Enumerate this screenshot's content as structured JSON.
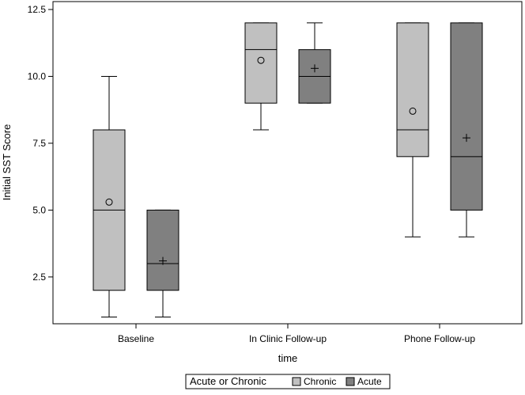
{
  "chart_data": {
    "type": "boxplot",
    "xlabel": "time",
    "ylabel": "Initial SST Score",
    "ylim": [
      0.75,
      12.5
    ],
    "yticks": [
      "2.5",
      "5.0",
      "7.5",
      "10.0",
      "12.5"
    ],
    "ytick_values": [
      2.5,
      5.0,
      7.5,
      10.0,
      12.5
    ],
    "categories": [
      "Baseline",
      "In Clinic Follow-up",
      "Phone Follow-up"
    ],
    "grid": false,
    "legend_position": "bottom-center",
    "legend_title": "Acute or Chronic",
    "series": [
      {
        "name": "Chronic",
        "color": "#c0c0c0",
        "mean_marker": "circle",
        "boxes": [
          {
            "min": 1,
            "q1": 2,
            "median": 5,
            "q3": 8,
            "max": 10,
            "mean": 5.3
          },
          {
            "min": 8,
            "q1": 9,
            "median": 11,
            "q3": 12,
            "max": 12,
            "mean": 10.6
          },
          {
            "min": 4,
            "q1": 7,
            "median": 8,
            "q3": 12,
            "max": 12,
            "mean": 8.7
          }
        ]
      },
      {
        "name": "Acute",
        "color": "#808080",
        "mean_marker": "plus",
        "boxes": [
          {
            "min": 1,
            "q1": 2,
            "median": 3,
            "q3": 5,
            "max": 5,
            "mean": 3.1
          },
          {
            "min": 9,
            "q1": 9,
            "median": 10,
            "q3": 11,
            "max": 12,
            "mean": 10.3
          },
          {
            "min": 4,
            "q1": 5,
            "median": 7,
            "q3": 12,
            "max": 12,
            "mean": 7.7
          }
        ]
      }
    ]
  }
}
